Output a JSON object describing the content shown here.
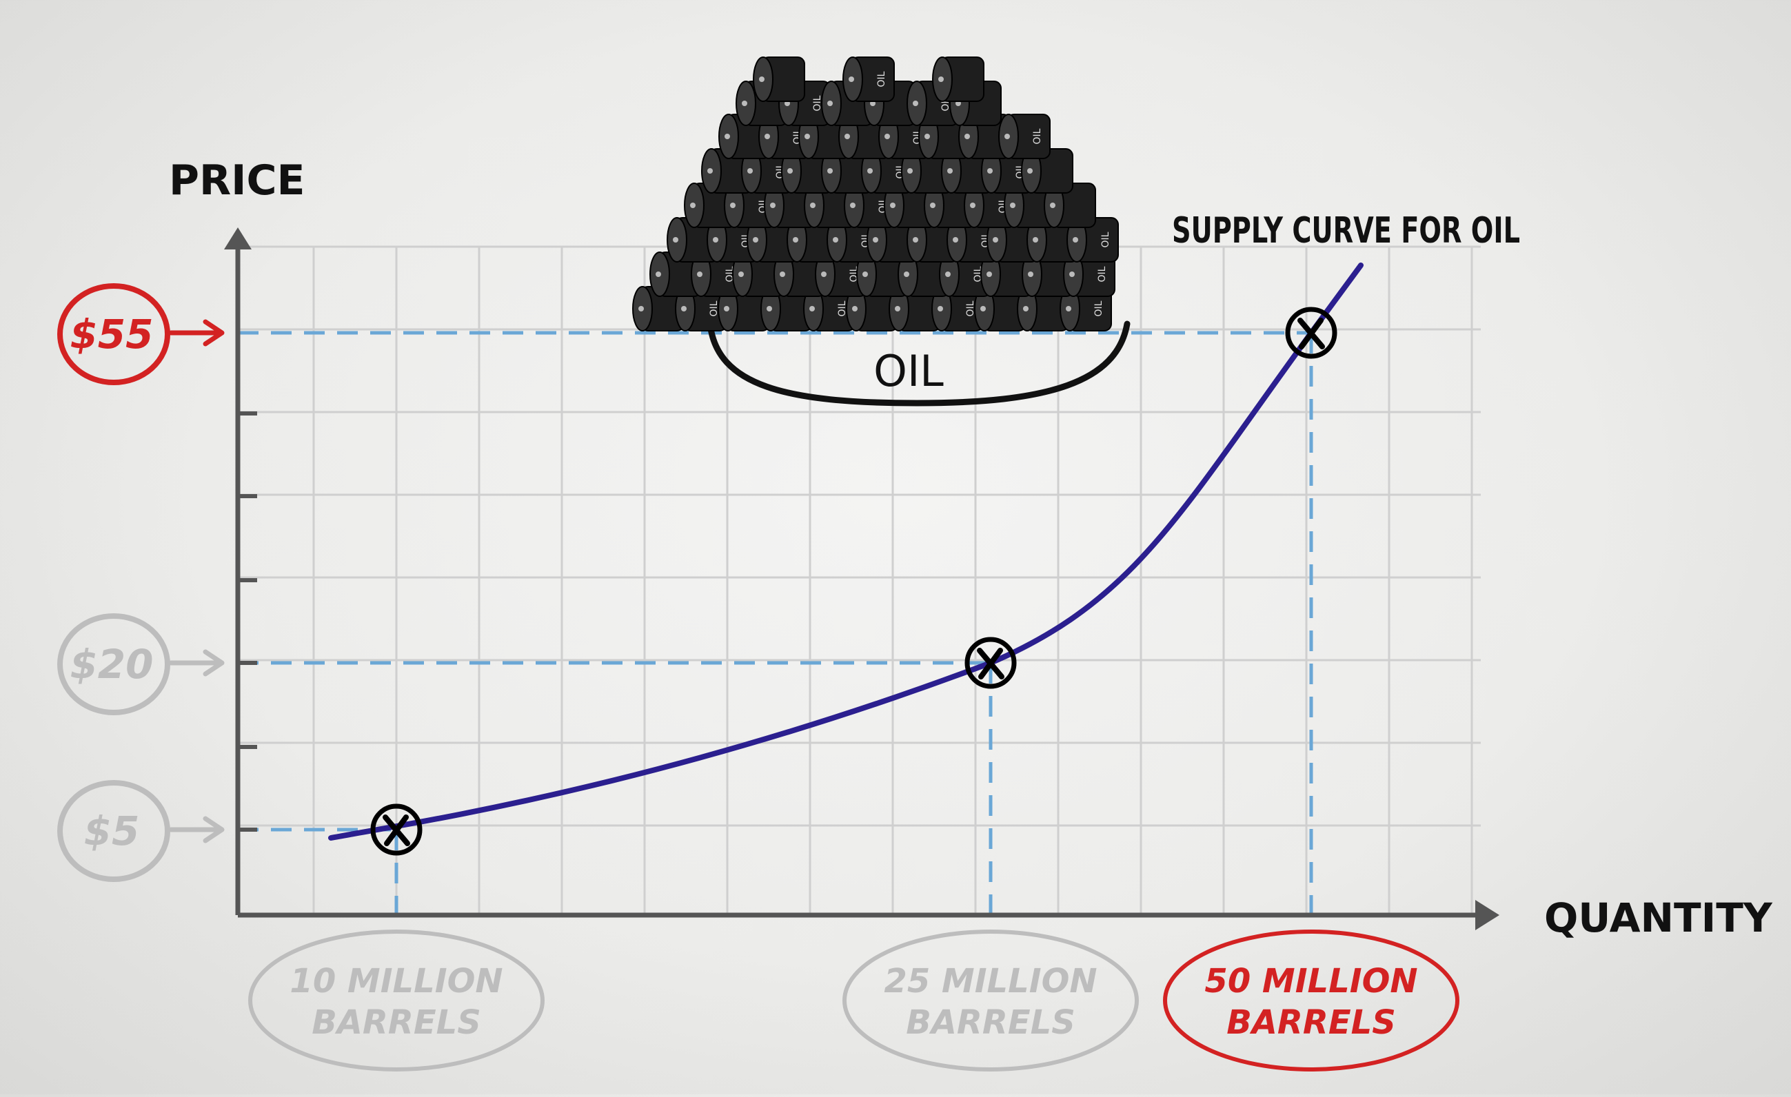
{
  "chart_data": {
    "type": "line",
    "title": "SUPPLY CURVE FOR OIL",
    "xlabel": "QUANTITY",
    "ylabel": "PRICE",
    "image_label": "OIL",
    "barrel_label": "OIL",
    "colors": {
      "curve": "#2b1f8f",
      "guide": "#6aa7d6",
      "highlight": "#d32222",
      "faded": "#bdbdbd",
      "grid": "#cfcfcf",
      "axis": "#555555"
    },
    "series": [
      {
        "values": [
          {
            "x": 10,
            "y": 5
          },
          {
            "x": 25,
            "y": 20
          },
          {
            "x": 50,
            "y": 55
          }
        ]
      }
    ],
    "points": [
      {
        "price_label": "$5",
        "qty_line1": "10 MILLION",
        "qty_line2": "BARRELS",
        "highlighted": false
      },
      {
        "price_label": "$20",
        "qty_line1": "25 MILLION",
        "qty_line2": "BARRELS",
        "highlighted": false
      },
      {
        "price_label": "$55",
        "qty_line1": "50 MILLION",
        "qty_line2": "BARRELS",
        "highlighted": true
      }
    ]
  }
}
